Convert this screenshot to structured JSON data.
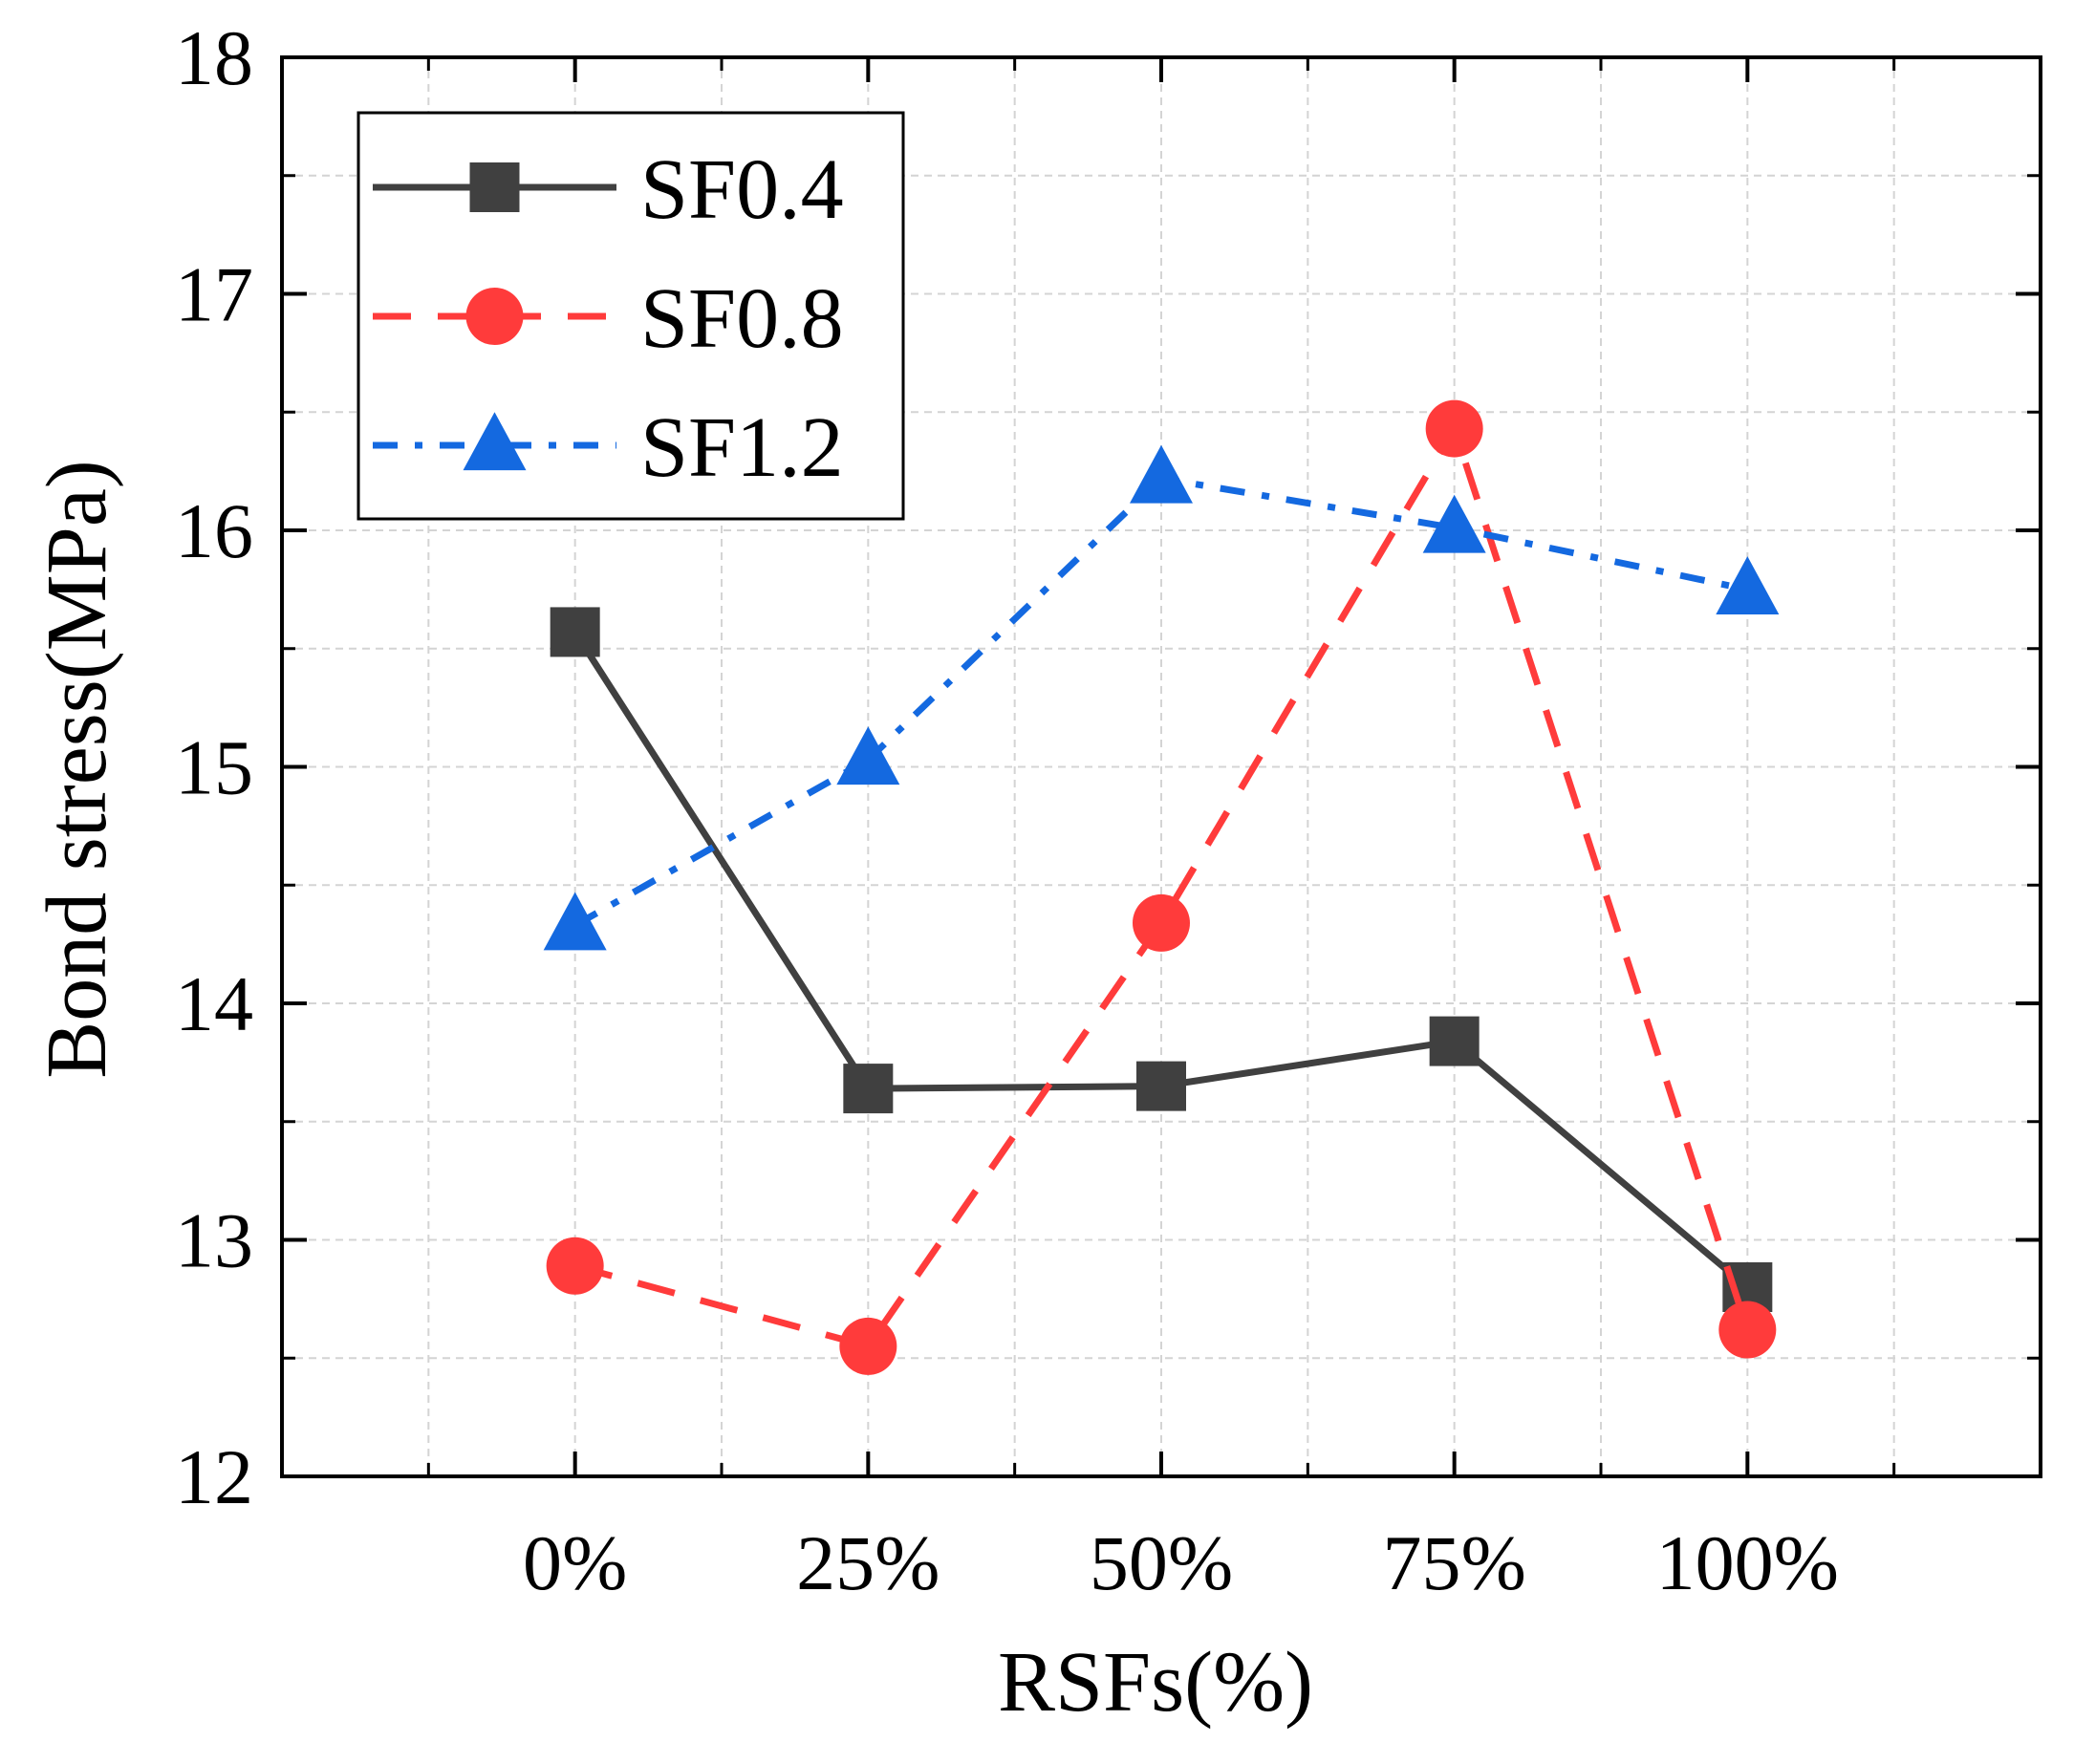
{
  "chart_data": {
    "type": "line",
    "title": "",
    "xlabel": "RSFs(%)",
    "ylabel": "Bond stress(MPa)",
    "categories": [
      "0%",
      "25%",
      "50%",
      "75%",
      "100%"
    ],
    "ylim": [
      12,
      18
    ],
    "yticks": [
      "12",
      "13",
      "14",
      "15",
      "16",
      "17",
      "18"
    ],
    "grid": true,
    "legend_position": "top-left",
    "series": [
      {
        "name": "SF0.4",
        "values": [
          15.57,
          13.64,
          13.65,
          13.84,
          12.8
        ],
        "color": "#404040",
        "marker": "square",
        "line_style": "solid"
      },
      {
        "name": "SF0.8",
        "values": [
          12.89,
          12.55,
          14.34,
          16.43,
          12.62
        ],
        "color": "#ff3b3b",
        "marker": "circle",
        "line_style": "dash"
      },
      {
        "name": "SF1.2",
        "values": [
          14.33,
          15.03,
          16.22,
          16.01,
          15.75
        ],
        "color": "#1469e0",
        "marker": "triangle",
        "line_style": "dashdot"
      }
    ]
  }
}
